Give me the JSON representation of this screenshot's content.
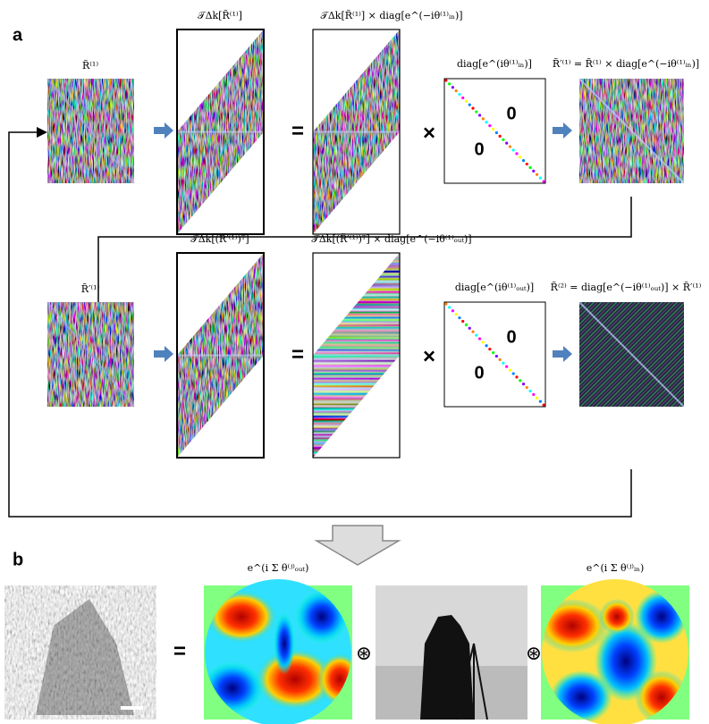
{
  "panel_a": {
    "label": "a",
    "rows": [
      {
        "input_label": "R̃⁽¹⁾",
        "transform_label": "𝒯Δk[R̃⁽¹⁾]",
        "product_label": "𝒯Δk[R̃⁽¹⁾] × diag[e^(−iθ⁽¹⁾ᵢₙ)]",
        "diag_label": "diag[e^(iθ⁽¹⁾ᵢₙ)]",
        "output_label": "R̃′⁽¹⁾ = R̃⁽¹⁾ × diag[e^(−iθ⁽¹⁾ᵢₙ)]",
        "equals": "=",
        "times": "×",
        "zeros": [
          "0",
          "0"
        ]
      },
      {
        "input_label": "R̃′⁽¹⁾",
        "transform_label": "𝒯Δk[(R̃′⁽¹⁾)ᵀ]",
        "product_label": "𝒯Δk[(R̃′⁽¹⁾)ᵀ] × diag[e^(−iθ⁽¹⁾ₒᵤₜ)]",
        "diag_label": "diag[e^(iθ⁽¹⁾ₒᵤₜ)]",
        "output_label": "R̃⁽²⁾ = diag[e^(−iθ⁽¹⁾ₒᵤₜ)] × R̃′⁽¹⁾",
        "equals": "=",
        "times": "×",
        "zeros": [
          "0",
          "0"
        ]
      }
    ]
  },
  "panel_b": {
    "label": "b",
    "labels": [
      "e^(i Σ θ⁽ʲ⁾ₒᵤₜ)",
      "e^(i Σ θ⁽ʲ⁾ᵢₙ)"
    ],
    "equals": "=",
    "convolutions": [
      "⊛",
      "⊛"
    ]
  }
}
